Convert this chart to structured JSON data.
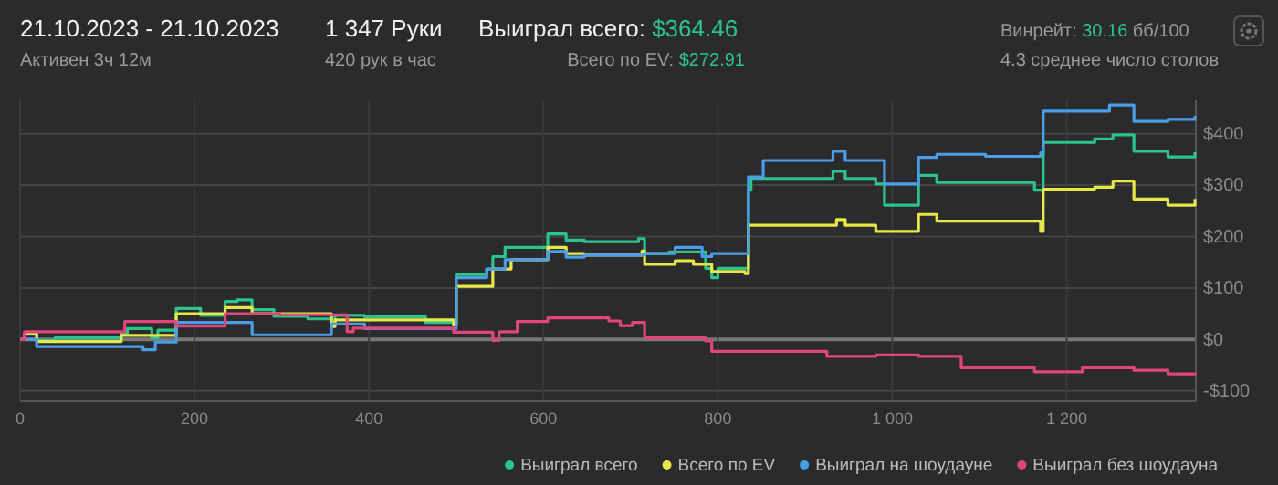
{
  "chart_data": {
    "type": "step",
    "title": "21.10.2023 - 21.10.2023",
    "subtitle": "Активен 3ч 12м",
    "annotations": [
      "1 347 Руки",
      "420 рук в час",
      "Выиграл всего: $364.46",
      "Всего по EV: $272.91",
      "Винрейт: 30.16 бб/100",
      "4.3 среднее число столов"
    ],
    "xlim": [
      0,
      1348
    ],
    "xticks": [
      0,
      200,
      400,
      600,
      800,
      {
        "value": 1000,
        "label": "1 000"
      },
      {
        "value": 1200,
        "label": "1 200"
      }
    ],
    "ylim": [
      -120,
      465
    ],
    "yticks": [
      {
        "value": -100,
        "label": "-$100"
      },
      {
        "value": 0,
        "label": "$0"
      },
      {
        "value": 100,
        "label": "$100"
      },
      {
        "value": 200,
        "label": "$200"
      },
      {
        "value": 300,
        "label": "$300"
      },
      {
        "value": 400,
        "label": "$400"
      }
    ],
    "grid": true,
    "legend": "bottom right",
    "marker": "none",
    "line_style": "solid",
    "series": [
      {
        "name": "Выиграл всего",
        "color": "#2bc48a",
        "x": [
          0,
          5,
          19,
          40,
          116,
          123,
          151,
          158,
          179,
          207,
          235,
          249,
          266,
          291,
          330,
          357,
          361,
          395,
          465,
          497,
          500,
          535,
          542,
          556,
          605,
          626,
          647,
          688,
          709,
          716,
          744,
          786,
          793,
          800,
          835,
          838,
          932,
          946,
          981,
          991,
          1030,
          1051,
          1163,
          1173,
          1232,
          1253,
          1277,
          1316,
          1347
        ],
        "values": [
          0,
          10,
          -2,
          3,
          12,
          21,
          3,
          18,
          60,
          47,
          74,
          77,
          58,
          45,
          40,
          27,
          47,
          44,
          33,
          30,
          126,
          137,
          161,
          179,
          205,
          193,
          190,
          190,
          196,
          167,
          170,
          138,
          120,
          138,
          290,
          313,
          327,
          313,
          302,
          261,
          319,
          305,
          290,
          383,
          390,
          398,
          366,
          355,
          364
        ]
      },
      {
        "name": "Всего по EV",
        "color": "#e6e84a",
        "x": [
          0,
          5,
          19,
          116,
          179,
          235,
          266,
          357,
          361,
          497,
          500,
          542,
          563,
          605,
          626,
          647,
          713,
          716,
          751,
          772,
          793,
          831,
          835,
          932,
          936,
          946,
          981,
          1030,
          1051,
          1107,
          1170,
          1173,
          1232,
          1253,
          1277,
          1316,
          1347
        ],
        "values": [
          0,
          12,
          -4,
          8,
          50,
          62,
          50,
          25,
          38,
          28,
          103,
          137,
          155,
          179,
          167,
          164,
          172,
          146,
          153,
          146,
          132,
          128,
          222,
          222,
          233,
          222,
          210,
          243,
          230,
          230,
          210,
          292,
          296,
          308,
          273,
          261,
          273
        ]
      },
      {
        "name": "Выиграл на шоудауне",
        "color": "#4a9de6",
        "x": [
          0,
          19,
          141,
          155,
          179,
          266,
          357,
          395,
          497,
          500,
          535,
          556,
          605,
          626,
          647,
          716,
          751,
          782,
          793,
          835,
          852,
          932,
          946,
          991,
          1030,
          1051,
          1107,
          1170,
          1173,
          1249,
          1277,
          1316,
          1347
        ],
        "values": [
          0,
          -14,
          -20,
          -5,
          33,
          9,
          30,
          21,
          21,
          120,
          137,
          155,
          171,
          160,
          164,
          167,
          179,
          161,
          167,
          316,
          348,
          366,
          348,
          302,
          354,
          360,
          356,
          363,
          444,
          456,
          424,
          428,
          435
        ]
      },
      {
        "name": "Выиграл без шоудауна",
        "color": "#e0457b",
        "x": [
          0,
          5,
          120,
          179,
          235,
          298,
          375,
          382,
          497,
          542,
          549,
          570,
          605,
          675,
          688,
          702,
          716,
          786,
          793,
          925,
          981,
          1030,
          1079,
          1163,
          1218,
          1277,
          1316,
          1347
        ],
        "values": [
          0,
          15,
          35,
          26,
          50,
          48,
          15,
          22,
          14,
          -2,
          15,
          35,
          42,
          36,
          27,
          33,
          3,
          -3,
          -23,
          -33,
          -30,
          -33,
          -55,
          -63,
          -55,
          -60,
          -67,
          -70
        ]
      }
    ]
  }
}
